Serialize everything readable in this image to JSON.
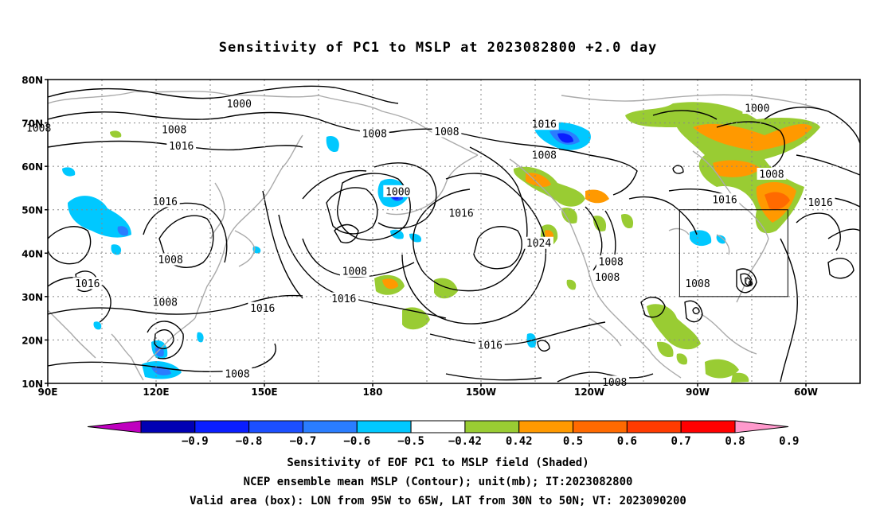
{
  "title": "Sensitivity of PC1 to MSLP at 2023082800 +2.0 day",
  "map": {
    "lon_range": [
      90,
      315
    ],
    "lat_range": [
      10,
      80
    ],
    "lat_ticks": [
      {
        "value": 80,
        "label": "80N"
      },
      {
        "value": 70,
        "label": "70N"
      },
      {
        "value": 60,
        "label": "60N"
      },
      {
        "value": 50,
        "label": "50N"
      },
      {
        "value": 40,
        "label": "40N"
      },
      {
        "value": 30,
        "label": "30N"
      },
      {
        "value": 20,
        "label": "20N"
      },
      {
        "value": 10,
        "label": "10N"
      }
    ],
    "lon_ticks": [
      {
        "value": 90,
        "label": "90E"
      },
      {
        "value": 120,
        "label": "120E"
      },
      {
        "value": 150,
        "label": "150E"
      },
      {
        "value": 180,
        "label": "180"
      },
      {
        "value": 210,
        "label": "150W"
      },
      {
        "value": 240,
        "label": "120W"
      },
      {
        "value": 270,
        "label": "90W"
      },
      {
        "value": 300,
        "label": "60W"
      }
    ],
    "grid_lons": [
      105,
      120,
      135,
      150,
      165,
      180,
      195,
      210,
      225,
      240,
      255,
      270,
      285,
      300
    ],
    "grid_lats": [
      20,
      30,
      40,
      50,
      60,
      70
    ],
    "valid_box": {
      "lon": [
        265,
        295
      ],
      "lat": [
        30,
        50
      ]
    },
    "contour_labels": [
      {
        "lon": 143,
        "lat": 74.4,
        "text": "1000"
      },
      {
        "lon": 87.5,
        "lat": 68.8,
        "text": "1008"
      },
      {
        "lon": 125,
        "lat": 68.5,
        "text": "1008"
      },
      {
        "lon": 180.5,
        "lat": 67.5,
        "text": "1008"
      },
      {
        "lon": 200.5,
        "lat": 68.0,
        "text": "1008"
      },
      {
        "lon": 127,
        "lat": 64.7,
        "text": "1016"
      },
      {
        "lon": 227.5,
        "lat": 69.7,
        "text": "1016"
      },
      {
        "lon": 286.5,
        "lat": 73.4,
        "text": "1000"
      },
      {
        "lon": 227.5,
        "lat": 62.6,
        "text": "1008"
      },
      {
        "lon": 122.5,
        "lat": 51.9,
        "text": "1016"
      },
      {
        "lon": 187,
        "lat": 54.2,
        "text": "1000"
      },
      {
        "lon": 204.5,
        "lat": 49.2,
        "text": "1016"
      },
      {
        "lon": 290.5,
        "lat": 58.2,
        "text": "1008"
      },
      {
        "lon": 277.5,
        "lat": 52.3,
        "text": "1016"
      },
      {
        "lon": 304,
        "lat": 51.7,
        "text": "1016"
      },
      {
        "lon": 226,
        "lat": 42.3,
        "text": "1024"
      },
      {
        "lon": 124,
        "lat": 38.5,
        "text": "1008"
      },
      {
        "lon": 101,
        "lat": 33.0,
        "text": "1016"
      },
      {
        "lon": 175,
        "lat": 35.8,
        "text": "1008"
      },
      {
        "lon": 246,
        "lat": 38.0,
        "text": "1008"
      },
      {
        "lon": 245,
        "lat": 34.5,
        "text": "1008"
      },
      {
        "lon": 270,
        "lat": 33.0,
        "text": "1008"
      },
      {
        "lon": 122.5,
        "lat": 28.7,
        "text": "1008"
      },
      {
        "lon": 149.5,
        "lat": 27.3,
        "text": "1016"
      },
      {
        "lon": 172,
        "lat": 29.5,
        "text": "1016"
      },
      {
        "lon": 212.5,
        "lat": 18.8,
        "text": "1016"
      },
      {
        "lon": 142.5,
        "lat": 12.2,
        "text": "1008"
      },
      {
        "lon": 247,
        "lat": 10.3,
        "text": "1008"
      }
    ]
  },
  "colorbar": {
    "colors": [
      "#bf00bf",
      "#0000b3",
      "#0a1eff",
      "#1c4fff",
      "#2a7dff",
      "#00c8ff",
      "#ffffff",
      "#99cc33",
      "#ff9900",
      "#ff6a00",
      "#ff3b00",
      "#ff0000",
      "#ff99cc"
    ],
    "labels": [
      "−0.9",
      "−0.8",
      "−0.7",
      "−0.6",
      "−0.5",
      "−0.42",
      "0.42",
      "0.5",
      "0.6",
      "0.7",
      "0.8",
      "0.9"
    ]
  },
  "captions": {
    "line1": "Sensitivity of EOF PC1 to MSLP field (Shaded)",
    "line2": "NCEP ensemble mean MSLP (Contour); unit(mb); IT:2023082800",
    "line3": "Valid area (box): LON from 95W to 65W, LAT from 30N to 50N; VT: 2023090200"
  }
}
